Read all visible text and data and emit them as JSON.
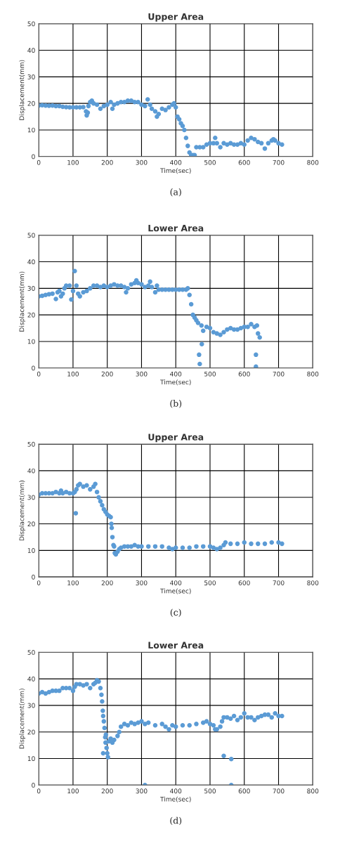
{
  "chart_data": [
    {
      "type": "scatter",
      "title": "Upper Area",
      "xlabel": "Time(sec)",
      "ylabel": "Displacement(mm)",
      "xlim": [
        0,
        800
      ],
      "ylim": [
        0,
        50
      ],
      "xticks": [
        0,
        100,
        200,
        300,
        400,
        500,
        600,
        700,
        800
      ],
      "yticks": [
        0,
        10,
        20,
        30,
        40,
        50
      ],
      "grid": true,
      "marker": "circle",
      "annotations": [
        "(a)"
      ],
      "series": [
        {
          "color": "#5b9bd5",
          "x": [
            0,
            10,
            20,
            30,
            40,
            50,
            60,
            70,
            80,
            90,
            100,
            110,
            120,
            130,
            138,
            140,
            143,
            145,
            150,
            155,
            160,
            170,
            180,
            190,
            200,
            210,
            215,
            220,
            230,
            240,
            250,
            260,
            270,
            280,
            290,
            300,
            310,
            318,
            325,
            330,
            340,
            345,
            350,
            360,
            370,
            380,
            390,
            395,
            400,
            405,
            410,
            415,
            420,
            425,
            430,
            435,
            440,
            445,
            450,
            455,
            460,
            470,
            480,
            490,
            500,
            510,
            515,
            520,
            530,
            540,
            550,
            560,
            570,
            580,
            590,
            600,
            610,
            620,
            630,
            640,
            650,
            660,
            670,
            680,
            685,
            690,
            700,
            710
          ],
          "values": [
            19.2,
            19.3,
            19.2,
            19.1,
            19.2,
            19,
            19,
            18.7,
            18.6,
            18.5,
            18.5,
            18.5,
            18.5,
            18.6,
            17,
            15.5,
            16.5,
            19,
            20.5,
            21,
            20,
            19.5,
            18,
            19,
            19.5,
            20.5,
            18,
            19.5,
            20,
            20.5,
            20.5,
            21,
            21,
            20.5,
            20.5,
            19.5,
            19,
            21.5,
            19.5,
            18,
            17,
            15,
            16,
            18,
            17.5,
            18.5,
            19.5,
            20,
            18.5,
            15,
            14,
            12.5,
            11.5,
            10,
            7,
            4,
            1.5,
            0.5,
            0.5,
            0.5,
            3.5,
            3.5,
            3.5,
            4.5,
            5,
            5,
            7,
            5,
            3.5,
            5,
            4.5,
            5,
            4.5,
            4.5,
            5,
            4.5,
            6,
            7,
            6.5,
            5.5,
            5,
            3,
            5,
            6,
            6.5,
            6,
            5,
            4.5
          ]
        }
      ]
    },
    {
      "type": "scatter",
      "title": "Lower Area",
      "xlabel": "Time(sec)",
      "ylabel": "Displacement(mm)",
      "xlim": [
        0,
        800
      ],
      "ylim": [
        0,
        50
      ],
      "xticks": [
        0,
        100,
        200,
        300,
        400,
        500,
        600,
        700,
        800
      ],
      "yticks": [
        0,
        10,
        20,
        30,
        40,
        50
      ],
      "grid": true,
      "marker": "circle",
      "annotations": [
        "(b)"
      ],
      "series": [
        {
          "color": "#5b9bd5",
          "x": [
            0,
            10,
            20,
            30,
            40,
            50,
            55,
            60,
            65,
            70,
            75,
            80,
            90,
            95,
            100,
            105,
            110,
            115,
            120,
            130,
            140,
            150,
            160,
            170,
            180,
            190,
            200,
            210,
            220,
            230,
            240,
            250,
            255,
            260,
            270,
            280,
            285,
            290,
            300,
            310,
            320,
            325,
            330,
            340,
            345,
            350,
            360,
            370,
            380,
            390,
            400,
            410,
            420,
            430,
            435,
            440,
            445,
            450,
            455,
            460,
            465,
            468,
            470,
            475,
            476,
            480,
            490,
            500,
            510,
            520,
            530,
            540,
            550,
            560,
            570,
            580,
            590,
            600,
            610,
            620,
            630,
            634,
            634,
            637,
            640,
            645
          ],
          "values": [
            27,
            27.2,
            27.5,
            27.8,
            28,
            26,
            28.5,
            29,
            27,
            28,
            30,
            31,
            31,
            25.8,
            29,
            36.5,
            31,
            28,
            27,
            28.5,
            29,
            30,
            31,
            31,
            30.5,
            31,
            30.5,
            31,
            31.5,
            31,
            31,
            30.5,
            28.5,
            30,
            31.5,
            32,
            33,
            32,
            31.5,
            30.5,
            31,
            32.5,
            30.5,
            28.5,
            31,
            29.5,
            29.5,
            29.5,
            29.5,
            29.5,
            29.5,
            29.5,
            29.5,
            29.5,
            30,
            27.5,
            24,
            20,
            19,
            18,
            17,
            5,
            1.5,
            16,
            9,
            14,
            15.5,
            15,
            13.5,
            13,
            12.5,
            13.5,
            14.5,
            15,
            14.5,
            14.5,
            15,
            15.5,
            15.5,
            16.5,
            15.5,
            5,
            0.5,
            16,
            13,
            11.5
          ]
        }
      ]
    },
    {
      "type": "scatter",
      "title": "Upper Area",
      "xlabel": "Time(sec)",
      "ylabel": "Displacement(mm)",
      "xlim": [
        0,
        800
      ],
      "ylim": [
        0,
        50
      ],
      "xticks": [
        0,
        100,
        200,
        300,
        400,
        500,
        600,
        700,
        800
      ],
      "yticks": [
        0,
        10,
        20,
        30,
        40,
        50
      ],
      "grid": true,
      "marker": "circle",
      "annotations": [
        "(c)"
      ],
      "series": [
        {
          "color": "#5b9bd5",
          "x": [
            0,
            10,
            20,
            30,
            40,
            50,
            60,
            65,
            70,
            80,
            90,
            100,
            105,
            108,
            110,
            115,
            120,
            130,
            140,
            150,
            160,
            165,
            170,
            175,
            180,
            185,
            190,
            195,
            200,
            205,
            210,
            212,
            213,
            215,
            218,
            220,
            222,
            225,
            230,
            235,
            240,
            250,
            260,
            270,
            280,
            290,
            300,
            320,
            340,
            360,
            380,
            390,
            400,
            420,
            440,
            460,
            480,
            500,
            510,
            520,
            530,
            540,
            545,
            560,
            580,
            600,
            620,
            640,
            660,
            680,
            700,
            710
          ],
          "values": [
            31,
            31.5,
            31.5,
            31.5,
            31.5,
            32,
            31.5,
            32.5,
            31.5,
            32,
            31.5,
            31.5,
            32,
            24,
            33,
            34.5,
            35,
            34,
            34.5,
            33,
            34,
            35,
            32,
            30,
            28.5,
            27,
            25.5,
            24.5,
            23.5,
            23,
            22.5,
            20,
            18.5,
            15,
            12,
            11.5,
            9,
            8.5,
            9.5,
            10.5,
            11,
            11.5,
            11.5,
            11.5,
            12,
            11.5,
            11.5,
            11.5,
            11.5,
            11.5,
            11,
            10.5,
            11,
            11,
            11,
            11.5,
            11.5,
            11.5,
            11,
            10.5,
            11,
            12,
            13,
            12.5,
            12.5,
            13,
            12.5,
            12.5,
            12.5,
            13,
            13,
            12.5
          ]
        }
      ]
    },
    {
      "type": "scatter",
      "title": "Lower Area",
      "xlabel": "Time(sec)",
      "ylabel": "Displacement(mm)",
      "xlim": [
        0,
        800
      ],
      "ylim": [
        0,
        50
      ],
      "xticks": [
        0,
        100,
        200,
        300,
        400,
        500,
        600,
        700,
        800
      ],
      "yticks": [
        0,
        10,
        20,
        30,
        40,
        50
      ],
      "grid": true,
      "marker": "circle",
      "annotations": [
        "(d)"
      ],
      "series": [
        {
          "color": "#5b9bd5",
          "x": [
            0,
            10,
            20,
            30,
            40,
            50,
            60,
            70,
            80,
            90,
            100,
            105,
            110,
            120,
            130,
            140,
            150,
            160,
            165,
            170,
            175,
            180,
            183,
            185,
            187,
            188,
            188,
            190,
            192,
            194,
            195,
            196,
            198,
            200,
            202,
            205,
            210,
            215,
            220,
            230,
            235,
            240,
            250,
            260,
            270,
            280,
            290,
            300,
            310,
            310,
            320,
            340,
            360,
            370,
            380,
            390,
            400,
            420,
            440,
            460,
            480,
            490,
            500,
            510,
            515,
            520,
            530,
            535,
            540,
            540,
            550,
            560,
            562,
            562,
            570,
            580,
            590,
            600,
            610,
            620,
            630,
            640,
            650,
            660,
            670,
            680,
            690,
            700,
            710
          ],
          "values": [
            34.5,
            35,
            34.5,
            35,
            35.5,
            35.5,
            35.5,
            36.5,
            36.5,
            36.5,
            35.5,
            37,
            38,
            38,
            37.5,
            38,
            36.5,
            38,
            38.5,
            39.5,
            39,
            36.5,
            34,
            31.5,
            28,
            26,
            12,
            24,
            21.5,
            18,
            16,
            19,
            14,
            12,
            10.5,
            16.5,
            17.5,
            16,
            17,
            18.5,
            20,
            22,
            23,
            22.5,
            23.5,
            23,
            23.5,
            24,
            23,
            0,
            23.5,
            22.5,
            23,
            22,
            21,
            22.5,
            22,
            22.5,
            22.5,
            23,
            23.5,
            24,
            23,
            22.5,
            21,
            21,
            22,
            24,
            25.5,
            11,
            25.5,
            25,
            9.8,
            0,
            26,
            24.5,
            25.5,
            27,
            25.5,
            25.5,
            24.5,
            25.5,
            26,
            26.5,
            26.5,
            25.5,
            27,
            26,
            26
          ]
        }
      ]
    }
  ]
}
